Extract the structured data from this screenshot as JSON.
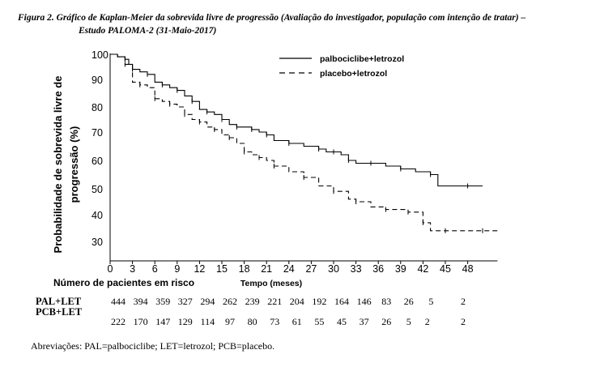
{
  "caption": {
    "line1": "Figura 2. Gráfico de Kaplan-Meier da sobrevida livre de progressão (Avaliação do investigador, população com intenção de tratar) –",
    "line2": "Estudo PALOMA-2 (31-Maio-2017)"
  },
  "chart_data": {
    "type": "line",
    "title": "",
    "ylabel": "Probabilidade de sobrevida livre de progressão (%)",
    "xlabel": "Tempo (meses)",
    "x_ticks": [
      0,
      3,
      6,
      9,
      12,
      15,
      18,
      21,
      24,
      27,
      30,
      33,
      36,
      39,
      42,
      45,
      48
    ],
    "y_ticks": [
      30,
      40,
      50,
      60,
      70,
      80,
      90,
      100
    ],
    "xlim": [
      0,
      52
    ],
    "ylim": [
      25,
      100
    ],
    "legend_position": "top-right",
    "series": [
      {
        "name": "palbociclibe+letrozol",
        "style": "solid",
        "x": [
          0,
          1,
          2,
          2.5,
          3,
          4,
          5,
          6,
          7,
          8,
          9,
          10,
          11,
          12,
          13,
          14,
          15,
          16,
          17,
          18,
          19,
          20,
          21,
          22,
          24,
          26,
          28,
          29,
          30,
          31,
          32,
          33,
          35,
          37,
          39,
          41,
          43,
          44,
          48,
          50
        ],
        "y": [
          100,
          99,
          98,
          96,
          94,
          93,
          92,
          89,
          88,
          87,
          86,
          84,
          82,
          79,
          78,
          77,
          75,
          73,
          72,
          72,
          71,
          70,
          69,
          67,
          66,
          65,
          64,
          63,
          63,
          62,
          60,
          59,
          59,
          58,
          57,
          56,
          55,
          51,
          51,
          51
        ]
      },
      {
        "name": "placebo+letrozol",
        "style": "dashed",
        "x": [
          0,
          1,
          2,
          3,
          4,
          5,
          6,
          7,
          8,
          9,
          10,
          11,
          12,
          13,
          14,
          15,
          16,
          17,
          18,
          19,
          20,
          21,
          22,
          24,
          26,
          28,
          30,
          32,
          33,
          35,
          37,
          39,
          40,
          41,
          42,
          43,
          45,
          48,
          50,
          52
        ],
        "y": [
          100,
          99,
          96,
          89,
          88,
          87,
          83,
          82,
          81,
          80,
          77,
          75,
          74,
          72,
          71,
          69,
          68,
          66,
          63,
          62,
          61,
          60,
          58,
          56,
          54,
          51,
          49,
          46,
          45,
          43,
          42,
          42,
          41,
          41,
          37,
          34,
          34,
          34,
          34,
          34
        ]
      }
    ]
  },
  "risk_table": {
    "title": "Número de pacientes em risco",
    "rows": [
      {
        "label": "PAL+LET",
        "x": [
          0,
          3,
          6,
          9,
          12,
          15,
          18,
          21,
          24,
          27,
          30,
          33,
          36,
          39,
          42,
          45,
          50
        ],
        "values": [
          "444",
          "394",
          "359",
          "327",
          "294",
          "262",
          "239",
          "221",
          "204",
          "192",
          "164",
          "146",
          "83",
          "26",
          "5",
          "",
          "2"
        ]
      },
      {
        "label": "PCB+LET",
        "x": [
          0,
          3,
          6,
          9,
          12,
          15,
          18,
          21,
          24,
          27,
          30,
          33,
          36,
          39,
          41.5,
          50
        ],
        "values": [
          "222",
          "170",
          "147",
          "129",
          "114",
          "97",
          "80",
          "73",
          "61",
          "55",
          "45",
          "37",
          "26",
          "5",
          "2",
          "2"
        ]
      }
    ]
  },
  "footnote": "Abreviações: PAL=palbociclibe; LET=letrozol; PCB=placebo."
}
